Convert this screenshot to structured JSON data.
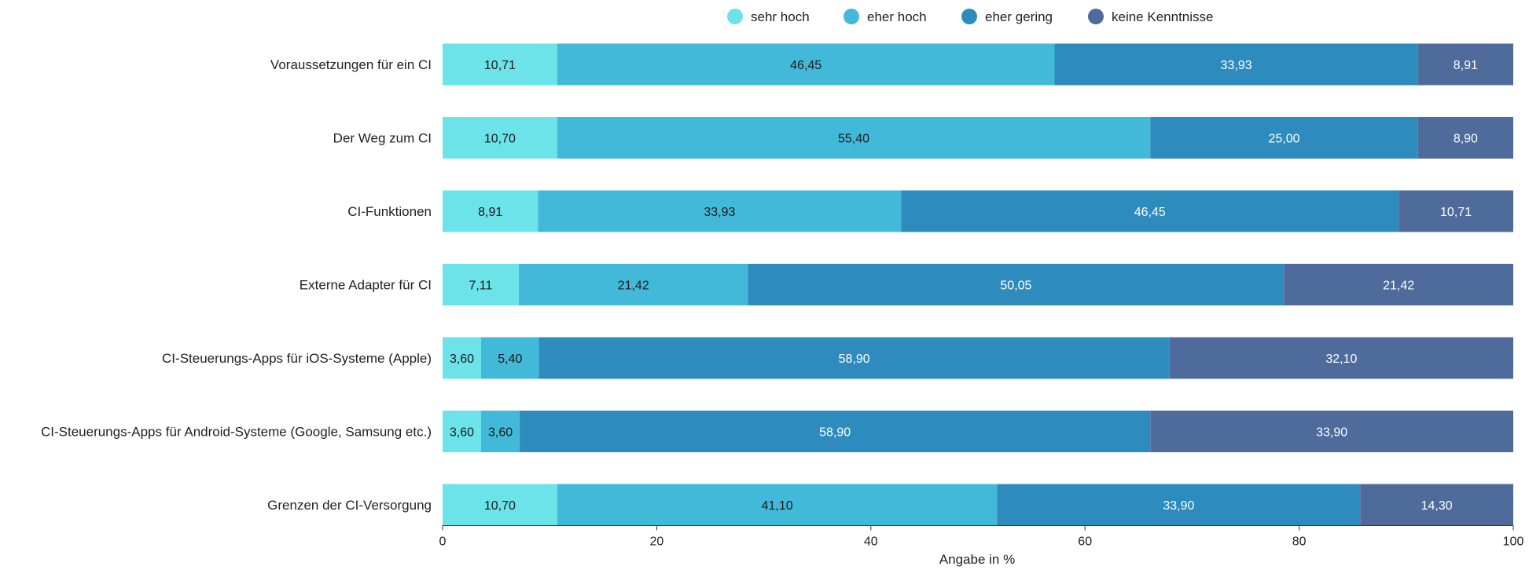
{
  "chart_data": {
    "type": "bar",
    "orientation": "horizontal",
    "stacked": true,
    "title": "",
    "xlabel": "Angabe in %",
    "ylabel": "",
    "xlim": [
      0,
      100
    ],
    "xticks": [
      0,
      20,
      40,
      60,
      80,
      100
    ],
    "grid": false,
    "legend_position": "top",
    "categories": [
      "Voraussetzungen für ein CI",
      "Der Weg zum CI",
      "CI-Funktionen",
      "Externe Adapter für CI",
      "CI-Steuerungs-Apps für iOS-Systeme (Apple)",
      "CI-Steuerungs-Apps für Android-Systeme (Google, Samsung etc.)",
      "Grenzen der CI-Versorgung"
    ],
    "series": [
      {
        "name": "sehr hoch",
        "color": "#6be3e8",
        "label_color": "#1a1a1a",
        "values": [
          10.71,
          10.7,
          8.91,
          7.11,
          3.6,
          3.6,
          10.7
        ],
        "labels": [
          "10,71",
          "10,70",
          "8,91",
          "7,11",
          "3,60",
          "3,60",
          "10,70"
        ]
      },
      {
        "name": "eher hoch",
        "color": "#42b9d8",
        "label_color": "#1a1a1a",
        "values": [
          46.45,
          55.4,
          33.93,
          21.42,
          5.4,
          3.6,
          41.1
        ],
        "labels": [
          "46,45",
          "55,40",
          "33,93",
          "21,42",
          "5,40",
          "3,60",
          "41,10"
        ]
      },
      {
        "name": "eher gering",
        "color": "#2e8bbd",
        "label_color": "#ffffff",
        "values": [
          33.93,
          25.0,
          46.45,
          50.05,
          58.9,
          58.9,
          33.9
        ],
        "labels": [
          "33,93",
          "25,00",
          "46,45",
          "50,05",
          "58,90",
          "58,90",
          "33,90"
        ]
      },
      {
        "name": "keine Kenntnisse",
        "color": "#4f6b9b",
        "label_color": "#ffffff",
        "values": [
          8.91,
          8.9,
          10.71,
          21.42,
          32.1,
          33.9,
          14.3
        ],
        "labels": [
          "8,91",
          "8,90",
          "10,71",
          "21,42",
          "32,10",
          "33,90",
          "14,30"
        ]
      }
    ]
  }
}
